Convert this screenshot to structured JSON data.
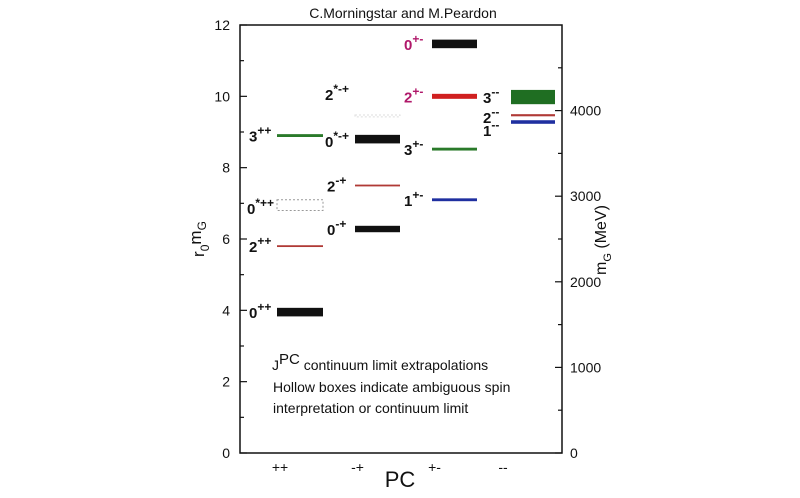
{
  "chart_data": {
    "type": "bar",
    "subtype": "energy-level spectrum",
    "title": "C.Morningstar and M.Peardon",
    "xlabel": "PC",
    "ylabel": "r0mG",
    "ylabel_parts": {
      "base": "r",
      "sub1": "0",
      "mid": "m",
      "sub2": "G"
    },
    "y2label": "mG (MeV)",
    "y2label_parts": {
      "base": "m",
      "sub": "G",
      "rest": " (MeV)"
    },
    "ylim": [
      0,
      12
    ],
    "yticks": [
      0,
      2,
      4,
      6,
      8,
      10,
      12
    ],
    "y2lim_MeV": [
      0,
      5000
    ],
    "y2ticks": [
      0,
      1000,
      2000,
      3000,
      4000
    ],
    "categories": [
      "++",
      "-+",
      "+-",
      "--"
    ],
    "annotation": {
      "line1_sup": "PC",
      "line1_base": "J",
      "line1_rest": " continuum limit extrapolations",
      "line2": "Hollow boxes indicate ambiguous spin",
      "line3": "interpretation or continuum limit"
    },
    "levels": [
      {
        "group": "++",
        "J": "0",
        "sup": "++",
        "value": 3.95,
        "error": 0.12,
        "color": "#111111",
        "hollow": false,
        "label_color": "#111111"
      },
      {
        "group": "++",
        "J": "2",
        "sup": "++",
        "value": 5.8,
        "error": 0.02,
        "color": "#b03a36",
        "hollow": false,
        "label_color": "#111111"
      },
      {
        "group": "++",
        "J": "0",
        "sup": "*++",
        "value": 6.95,
        "error": 0.15,
        "color": "#999999",
        "hollow": true,
        "label_color": "#111111"
      },
      {
        "group": "++",
        "J": "3",
        "sup": "++",
        "value": 8.9,
        "error": 0.04,
        "color": "#2a7a2a",
        "hollow": false,
        "label_color": "#111111"
      },
      {
        "group": "-+",
        "J": "0",
        "sup": "-+",
        "value": 6.28,
        "error": 0.09,
        "color": "#111111",
        "hollow": false,
        "label_color": "#111111"
      },
      {
        "group": "-+",
        "J": "2",
        "sup": "-+",
        "value": 7.5,
        "error": 0.02,
        "color": "#b03a36",
        "hollow": false,
        "label_color": "#111111"
      },
      {
        "group": "-+",
        "J": "0",
        "sup": "*-+",
        "value": 8.8,
        "error": 0.12,
        "color": "#111111",
        "hollow": false,
        "label_color": "#111111"
      },
      {
        "group": "-+",
        "J": "2",
        "sup": "*-+",
        "value": 9.45,
        "error": 0.02,
        "color": "#dddddd",
        "hollow": true,
        "label_color": "#111111"
      },
      {
        "group": "+-",
        "J": "1",
        "sup": "+-",
        "value": 7.1,
        "error": 0.04,
        "color": "#1f2fa0",
        "hollow": false,
        "label_color": "#111111"
      },
      {
        "group": "+-",
        "J": "3",
        "sup": "+-",
        "value": 8.52,
        "error": 0.04,
        "color": "#2a7a2a",
        "hollow": false,
        "label_color": "#111111"
      },
      {
        "group": "+-",
        "J": "2",
        "sup": "+-",
        "value": 10.0,
        "error": 0.07,
        "color": "#d02020",
        "hollow": false,
        "label_color": "#b0186a"
      },
      {
        "group": "+-",
        "J": "0",
        "sup": "+-",
        "value": 11.47,
        "error": 0.12,
        "color": "#111111",
        "hollow": false,
        "label_color": "#b0186a"
      },
      {
        "group": "--",
        "J": "1",
        "sup": "--",
        "value": 9.28,
        "error": 0.05,
        "color": "#1f2fa0",
        "hollow": false,
        "label_color": "#111111"
      },
      {
        "group": "--",
        "J": "2",
        "sup": "--",
        "value": 9.47,
        "error": 0.03,
        "color": "#b03a36",
        "hollow": false,
        "label_color": "#111111"
      },
      {
        "group": "--",
        "J": "3",
        "sup": "--",
        "value": 9.98,
        "error": 0.2,
        "color": "#1f6e22",
        "hollow": false,
        "label_color": "#111111"
      }
    ]
  }
}
